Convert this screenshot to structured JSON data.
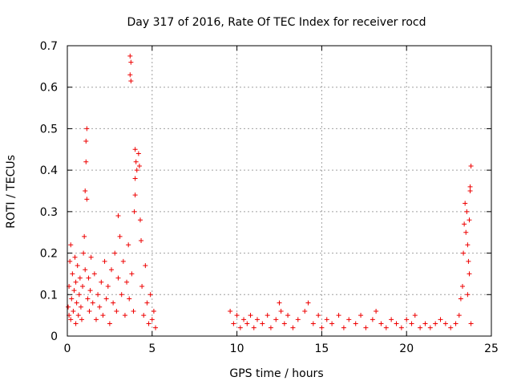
{
  "chart_data": {
    "type": "scatter",
    "title": "Day 317 of 2016, Rate Of TEC Index for receiver rocd",
    "xlabel": "GPS time / hours",
    "ylabel": "ROTI / TECUs",
    "xlim": [
      0,
      25
    ],
    "ylim": [
      0,
      0.7
    ],
    "x_ticks": [
      "0",
      "5",
      "10",
      "15",
      "20",
      "25"
    ],
    "y_ticks": [
      "0",
      "0.1",
      "0.2",
      "0.3",
      "0.4",
      "0.5",
      "0.6",
      "0.7"
    ],
    "grid": true,
    "marker": "plus",
    "color": "#ee0000",
    "series": [
      {
        "points": [
          [
            0.05,
            0.07
          ],
          [
            0.1,
            0.05
          ],
          [
            0.1,
            0.12
          ],
          [
            0.15,
            0.18
          ],
          [
            0.2,
            0.22
          ],
          [
            0.2,
            0.04
          ],
          [
            0.25,
            0.09
          ],
          [
            0.3,
            0.15
          ],
          [
            0.35,
            0.06
          ],
          [
            0.4,
            0.11
          ],
          [
            0.45,
            0.19
          ],
          [
            0.5,
            0.03
          ],
          [
            0.5,
            0.13
          ],
          [
            0.55,
            0.08
          ],
          [
            0.6,
            0.17
          ],
          [
            0.65,
            0.05
          ],
          [
            0.7,
            0.1
          ],
          [
            0.75,
            0.14
          ],
          [
            0.8,
            0.07
          ],
          [
            0.85,
            0.04
          ],
          [
            0.9,
            0.12
          ],
          [
            0.95,
            0.2
          ],
          [
            1.0,
            0.24
          ],
          [
            1.05,
            0.16
          ],
          [
            1.05,
            0.35
          ],
          [
            1.1,
            0.42
          ],
          [
            1.1,
            0.47
          ],
          [
            1.15,
            0.5
          ],
          [
            1.15,
            0.33
          ],
          [
            1.2,
            0.09
          ],
          [
            1.25,
            0.14
          ],
          [
            1.3,
            0.06
          ],
          [
            1.35,
            0.11
          ],
          [
            1.4,
            0.19
          ],
          [
            1.5,
            0.08
          ],
          [
            1.6,
            0.15
          ],
          [
            1.7,
            0.04
          ],
          [
            1.8,
            0.1
          ],
          [
            1.9,
            0.07
          ],
          [
            2.0,
            0.13
          ],
          [
            2.1,
            0.05
          ],
          [
            2.2,
            0.18
          ],
          [
            2.3,
            0.09
          ],
          [
            2.4,
            0.12
          ],
          [
            2.5,
            0.03
          ],
          [
            2.6,
            0.16
          ],
          [
            2.7,
            0.08
          ],
          [
            2.8,
            0.2
          ],
          [
            2.9,
            0.06
          ],
          [
            3.0,
            0.29
          ],
          [
            3.0,
            0.14
          ],
          [
            3.1,
            0.24
          ],
          [
            3.2,
            0.1
          ],
          [
            3.3,
            0.18
          ],
          [
            3.4,
            0.05
          ],
          [
            3.5,
            0.13
          ],
          [
            3.6,
            0.22
          ],
          [
            3.65,
            0.09
          ],
          [
            3.7,
            0.675
          ],
          [
            3.75,
            0.66
          ],
          [
            3.7,
            0.63
          ],
          [
            3.75,
            0.615
          ],
          [
            3.8,
            0.15
          ],
          [
            3.9,
            0.06
          ],
          [
            4.0,
            0.45
          ],
          [
            4.05,
            0.42
          ],
          [
            4.1,
            0.4
          ],
          [
            4.0,
            0.38
          ],
          [
            3.95,
            0.3
          ],
          [
            4.0,
            0.34
          ],
          [
            4.2,
            0.44
          ],
          [
            4.25,
            0.41
          ],
          [
            4.3,
            0.28
          ],
          [
            4.35,
            0.23
          ],
          [
            4.4,
            0.12
          ],
          [
            4.5,
            0.05
          ],
          [
            4.6,
            0.17
          ],
          [
            4.7,
            0.08
          ],
          [
            4.8,
            0.03
          ],
          [
            4.9,
            0.1
          ],
          [
            5.0,
            0.04
          ],
          [
            5.1,
            0.06
          ],
          [
            5.2,
            0.02
          ],
          [
            9.6,
            0.06
          ],
          [
            9.8,
            0.03
          ],
          [
            10.0,
            0.05
          ],
          [
            10.2,
            0.02
          ],
          [
            10.4,
            0.04
          ],
          [
            10.6,
            0.03
          ],
          [
            10.8,
            0.05
          ],
          [
            11.0,
            0.02
          ],
          [
            11.2,
            0.04
          ],
          [
            11.5,
            0.03
          ],
          [
            11.8,
            0.05
          ],
          [
            12.0,
            0.02
          ],
          [
            12.3,
            0.04
          ],
          [
            12.5,
            0.08
          ],
          [
            12.6,
            0.06
          ],
          [
            12.8,
            0.03
          ],
          [
            13.0,
            0.05
          ],
          [
            13.3,
            0.02
          ],
          [
            13.6,
            0.04
          ],
          [
            14.0,
            0.06
          ],
          [
            14.2,
            0.08
          ],
          [
            14.5,
            0.03
          ],
          [
            14.8,
            0.05
          ],
          [
            15.0,
            0.02
          ],
          [
            15.3,
            0.04
          ],
          [
            15.6,
            0.03
          ],
          [
            16.0,
            0.05
          ],
          [
            16.3,
            0.02
          ],
          [
            16.6,
            0.04
          ],
          [
            17.0,
            0.03
          ],
          [
            17.3,
            0.05
          ],
          [
            17.6,
            0.02
          ],
          [
            18.0,
            0.04
          ],
          [
            18.2,
            0.06
          ],
          [
            18.5,
            0.03
          ],
          [
            18.8,
            0.02
          ],
          [
            19.1,
            0.04
          ],
          [
            19.4,
            0.03
          ],
          [
            19.7,
            0.02
          ],
          [
            20.0,
            0.04
          ],
          [
            20.3,
            0.03
          ],
          [
            20.5,
            0.05
          ],
          [
            20.8,
            0.02
          ],
          [
            21.1,
            0.03
          ],
          [
            21.4,
            0.02
          ],
          [
            21.7,
            0.03
          ],
          [
            22.0,
            0.04
          ],
          [
            22.3,
            0.03
          ],
          [
            22.6,
            0.02
          ],
          [
            22.9,
            0.03
          ],
          [
            23.1,
            0.05
          ],
          [
            23.2,
            0.09
          ],
          [
            23.3,
            0.12
          ],
          [
            23.35,
            0.2
          ],
          [
            23.4,
            0.27
          ],
          [
            23.45,
            0.32
          ],
          [
            23.5,
            0.25
          ],
          [
            23.55,
            0.3
          ],
          [
            23.6,
            0.22
          ],
          [
            23.65,
            0.18
          ],
          [
            23.7,
            0.28
          ],
          [
            23.75,
            0.36
          ],
          [
            23.75,
            0.35
          ],
          [
            23.8,
            0.41
          ],
          [
            23.7,
            0.15
          ],
          [
            23.6,
            0.1
          ],
          [
            23.8,
            0.03
          ]
        ]
      }
    ]
  }
}
